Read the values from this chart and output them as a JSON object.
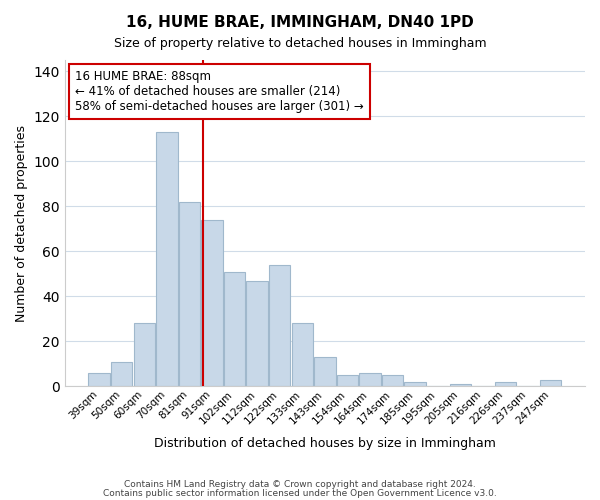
{
  "title": "16, HUME BRAE, IMMINGHAM, DN40 1PD",
  "subtitle": "Size of property relative to detached houses in Immingham",
  "xlabel": "Distribution of detached houses by size in Immingham",
  "ylabel": "Number of detached properties",
  "categories": [
    "39sqm",
    "50sqm",
    "60sqm",
    "70sqm",
    "81sqm",
    "91sqm",
    "102sqm",
    "112sqm",
    "122sqm",
    "133sqm",
    "143sqm",
    "154sqm",
    "164sqm",
    "174sqm",
    "185sqm",
    "195sqm",
    "205sqm",
    "216sqm",
    "226sqm",
    "237sqm",
    "247sqm"
  ],
  "values": [
    6,
    11,
    28,
    113,
    82,
    74,
    51,
    47,
    54,
    28,
    13,
    5,
    6,
    5,
    2,
    0,
    1,
    0,
    2,
    0,
    3
  ],
  "bar_color": "#c8d8e8",
  "bar_edgecolor": "#a0b8cc",
  "vline_color": "#cc0000",
  "vline_pos": 4.6,
  "annotation_text": "16 HUME BRAE: 88sqm\n← 41% of detached houses are smaller (214)\n58% of semi-detached houses are larger (301) →",
  "annotation_box_color": "#ffffff",
  "annotation_box_edgecolor": "#cc0000",
  "ylim": [
    0,
    145
  ],
  "yticks": [
    0,
    20,
    40,
    60,
    80,
    100,
    120,
    140
  ],
  "footer_line1": "Contains HM Land Registry data © Crown copyright and database right 2024.",
  "footer_line2": "Contains public sector information licensed under the Open Government Licence v3.0.",
  "background_color": "#ffffff",
  "grid_color": "#d0dce8"
}
